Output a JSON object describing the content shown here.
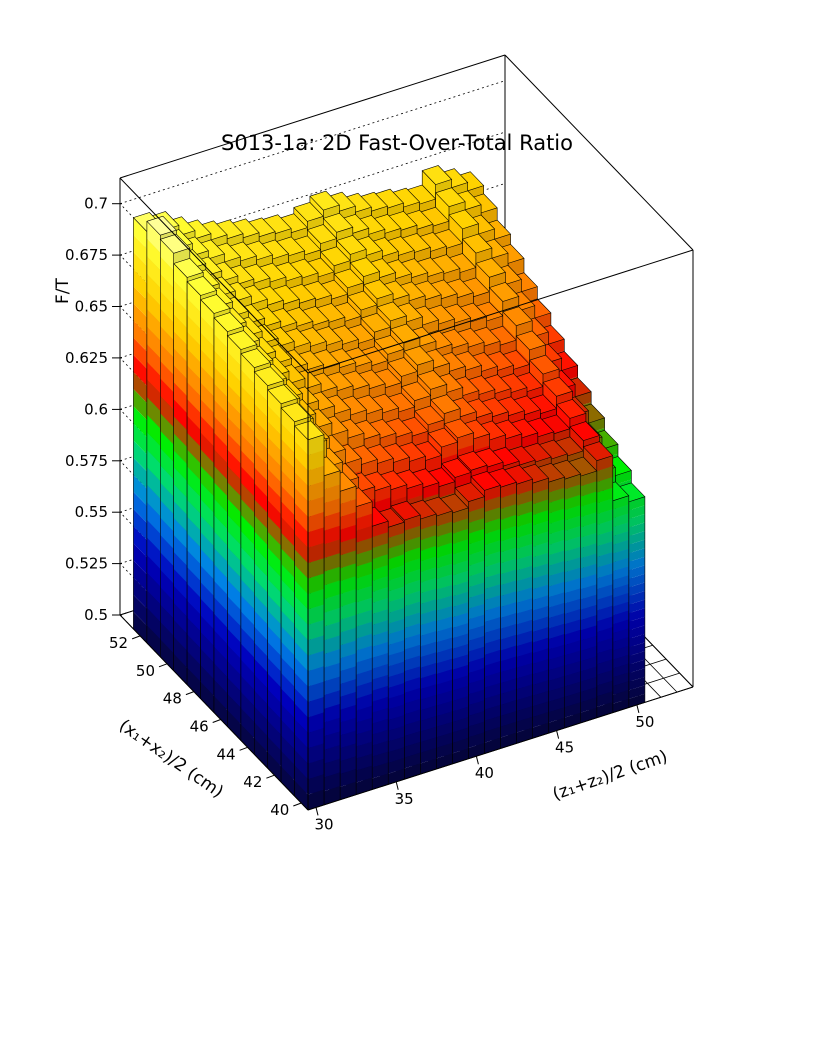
{
  "chart_data": {
    "type": "lego3d",
    "title": "S013-1a: 2D Fast-Over-Total Ratio",
    "zlabel": "F/T",
    "xlabel": "(x₁+x₂)/2 (cm)",
    "ylabel": "(z₁+z₂)/2 (cm)",
    "zlim": [
      0.5,
      0.7125
    ],
    "z_ticks": [
      "0.5",
      "0.525",
      "0.55",
      "0.575",
      "0.6",
      "0.625",
      "0.65",
      "0.675",
      "0.7"
    ],
    "x_ticks": [
      "40",
      "42",
      "44",
      "46",
      "48",
      "50",
      "52"
    ],
    "y_ticks": [
      "30",
      "35",
      "40",
      "45",
      "50"
    ],
    "x_range": [
      39.5,
      53.5
    ],
    "y_range": [
      29.5,
      53.5
    ],
    "x_bin_centers": [
      40,
      41,
      42,
      43,
      44,
      45,
      46,
      47,
      48,
      49,
      50,
      51,
      52
    ],
    "y_bin_centers": [
      30,
      31,
      32,
      33,
      34,
      35,
      36,
      37,
      38,
      39,
      40,
      41,
      42,
      43,
      44,
      45,
      46,
      47,
      48,
      49,
      50
    ],
    "values": [
      [
        0.68,
        0.66,
        0.65,
        0.64,
        0.628,
        0.625,
        0.626,
        0.624,
        0.623,
        0.622,
        0.625,
        0.628,
        0.627,
        0.626,
        0.624,
        0.622,
        0.621,
        0.62,
        0.625,
        0.603,
        0.6
      ],
      [
        0.682,
        0.668,
        0.655,
        0.645,
        0.638,
        0.636,
        0.634,
        0.632,
        0.63,
        0.628,
        0.63,
        0.631,
        0.63,
        0.628,
        0.626,
        0.625,
        0.624,
        0.623,
        0.628,
        0.61,
        0.606
      ],
      [
        0.684,
        0.672,
        0.66,
        0.652,
        0.645,
        0.642,
        0.64,
        0.638,
        0.636,
        0.634,
        0.638,
        0.64,
        0.637,
        0.634,
        0.632,
        0.63,
        0.628,
        0.627,
        0.632,
        0.618,
        0.612
      ],
      [
        0.686,
        0.675,
        0.665,
        0.658,
        0.652,
        0.648,
        0.645,
        0.643,
        0.641,
        0.639,
        0.642,
        0.645,
        0.641,
        0.638,
        0.636,
        0.634,
        0.632,
        0.63,
        0.636,
        0.624,
        0.618
      ],
      [
        0.688,
        0.678,
        0.668,
        0.662,
        0.657,
        0.653,
        0.65,
        0.648,
        0.646,
        0.644,
        0.647,
        0.65,
        0.646,
        0.642,
        0.64,
        0.638,
        0.636,
        0.634,
        0.64,
        0.63,
        0.624
      ],
      [
        0.69,
        0.68,
        0.672,
        0.666,
        0.661,
        0.657,
        0.655,
        0.653,
        0.651,
        0.649,
        0.652,
        0.655,
        0.651,
        0.647,
        0.645,
        0.642,
        0.64,
        0.638,
        0.645,
        0.636,
        0.63
      ],
      [
        0.692,
        0.683,
        0.675,
        0.669,
        0.664,
        0.661,
        0.659,
        0.657,
        0.655,
        0.653,
        0.656,
        0.659,
        0.655,
        0.651,
        0.649,
        0.647,
        0.645,
        0.643,
        0.65,
        0.642,
        0.636
      ],
      [
        0.694,
        0.685,
        0.678,
        0.672,
        0.668,
        0.665,
        0.663,
        0.661,
        0.659,
        0.657,
        0.66,
        0.663,
        0.66,
        0.656,
        0.654,
        0.652,
        0.65,
        0.648,
        0.655,
        0.648,
        0.642
      ],
      [
        0.696,
        0.688,
        0.681,
        0.675,
        0.671,
        0.668,
        0.666,
        0.664,
        0.663,
        0.661,
        0.664,
        0.667,
        0.664,
        0.661,
        0.659,
        0.657,
        0.655,
        0.653,
        0.66,
        0.654,
        0.648
      ],
      [
        0.698,
        0.69,
        0.684,
        0.679,
        0.675,
        0.672,
        0.67,
        0.668,
        0.667,
        0.665,
        0.668,
        0.671,
        0.668,
        0.665,
        0.663,
        0.661,
        0.66,
        0.658,
        0.665,
        0.66,
        0.655
      ],
      [
        0.703,
        0.693,
        0.687,
        0.682,
        0.678,
        0.676,
        0.674,
        0.672,
        0.671,
        0.669,
        0.672,
        0.675,
        0.672,
        0.669,
        0.667,
        0.666,
        0.664,
        0.663,
        0.67,
        0.665,
        0.66
      ],
      [
        0.705,
        0.696,
        0.69,
        0.686,
        0.682,
        0.68,
        0.678,
        0.676,
        0.675,
        0.673,
        0.676,
        0.679,
        0.676,
        0.673,
        0.671,
        0.67,
        0.668,
        0.667,
        0.674,
        0.67,
        0.666
      ],
      [
        0.7,
        0.698,
        0.693,
        0.689,
        0.686,
        0.684,
        0.682,
        0.68,
        0.679,
        0.677,
        0.68,
        0.683,
        0.68,
        0.677,
        0.675,
        0.674,
        0.672,
        0.671,
        0.678,
        0.674,
        0.67
      ]
    ],
    "grid": true
  }
}
